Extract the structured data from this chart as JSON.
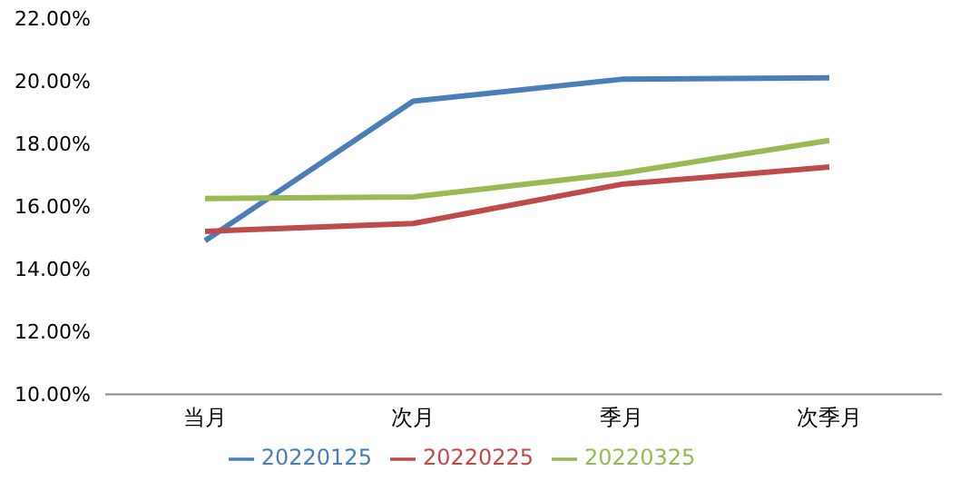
{
  "chart_data": {
    "type": "line",
    "categories": [
      "当月",
      "次月",
      "季月",
      "次季月"
    ],
    "series": [
      {
        "name": "20220125",
        "color": "#4a7ebb",
        "values": [
          14.9,
          19.35,
          20.05,
          20.1
        ]
      },
      {
        "name": "20220225",
        "color": "#be4b48",
        "values": [
          15.2,
          15.45,
          16.7,
          17.25
        ]
      },
      {
        "name": "20220325",
        "color": "#98b954",
        "values": [
          16.25,
          16.3,
          17.05,
          18.1
        ]
      }
    ],
    "ylim": [
      10,
      22
    ],
    "yticks": [
      {
        "value": 10,
        "label": "10.00%"
      },
      {
        "value": 12,
        "label": "12.00%"
      },
      {
        "value": 14,
        "label": "14.00%"
      },
      {
        "value": 16,
        "label": "16.00%"
      },
      {
        "value": 18,
        "label": "18.00%"
      },
      {
        "value": 20,
        "label": "20.00%"
      },
      {
        "value": 22,
        "label": "22.00%"
      }
    ],
    "grid": false,
    "legend": "bottom",
    "marker": "none",
    "line_style": "solid"
  }
}
